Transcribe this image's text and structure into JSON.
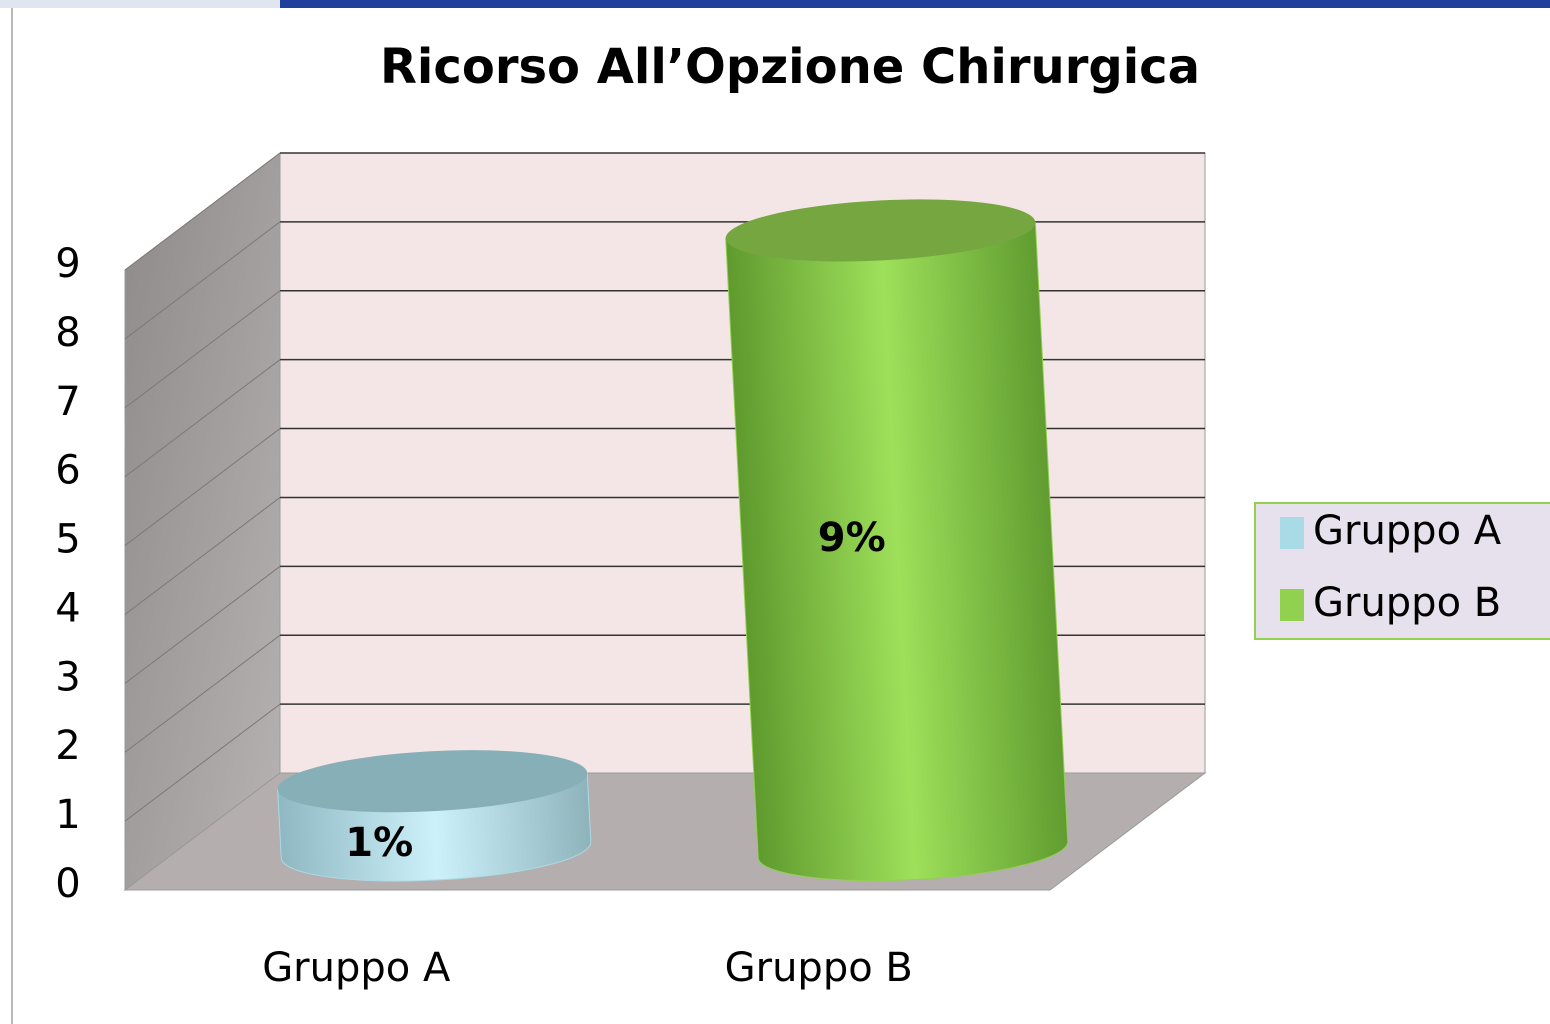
{
  "chart_data": {
    "type": "bar3d",
    "title": "Ricorso All’Opzione Chirurgica",
    "categories": [
      "Gruppo A",
      "Gruppo B"
    ],
    "series": [
      {
        "name": "Gruppo A",
        "color": "#a9dbe6",
        "values": [
          1,
          null
        ],
        "value_labels": [
          "1%",
          null
        ]
      },
      {
        "name": "Gruppo B",
        "color": "#92d050",
        "values": [
          null,
          9
        ],
        "value_labels": [
          null,
          "9%"
        ]
      }
    ],
    "ylim": [
      0,
      9
    ],
    "yticks": [
      0,
      1,
      2,
      3,
      4,
      5,
      6,
      7,
      8,
      9
    ],
    "grid": true,
    "legend": "right"
  }
}
